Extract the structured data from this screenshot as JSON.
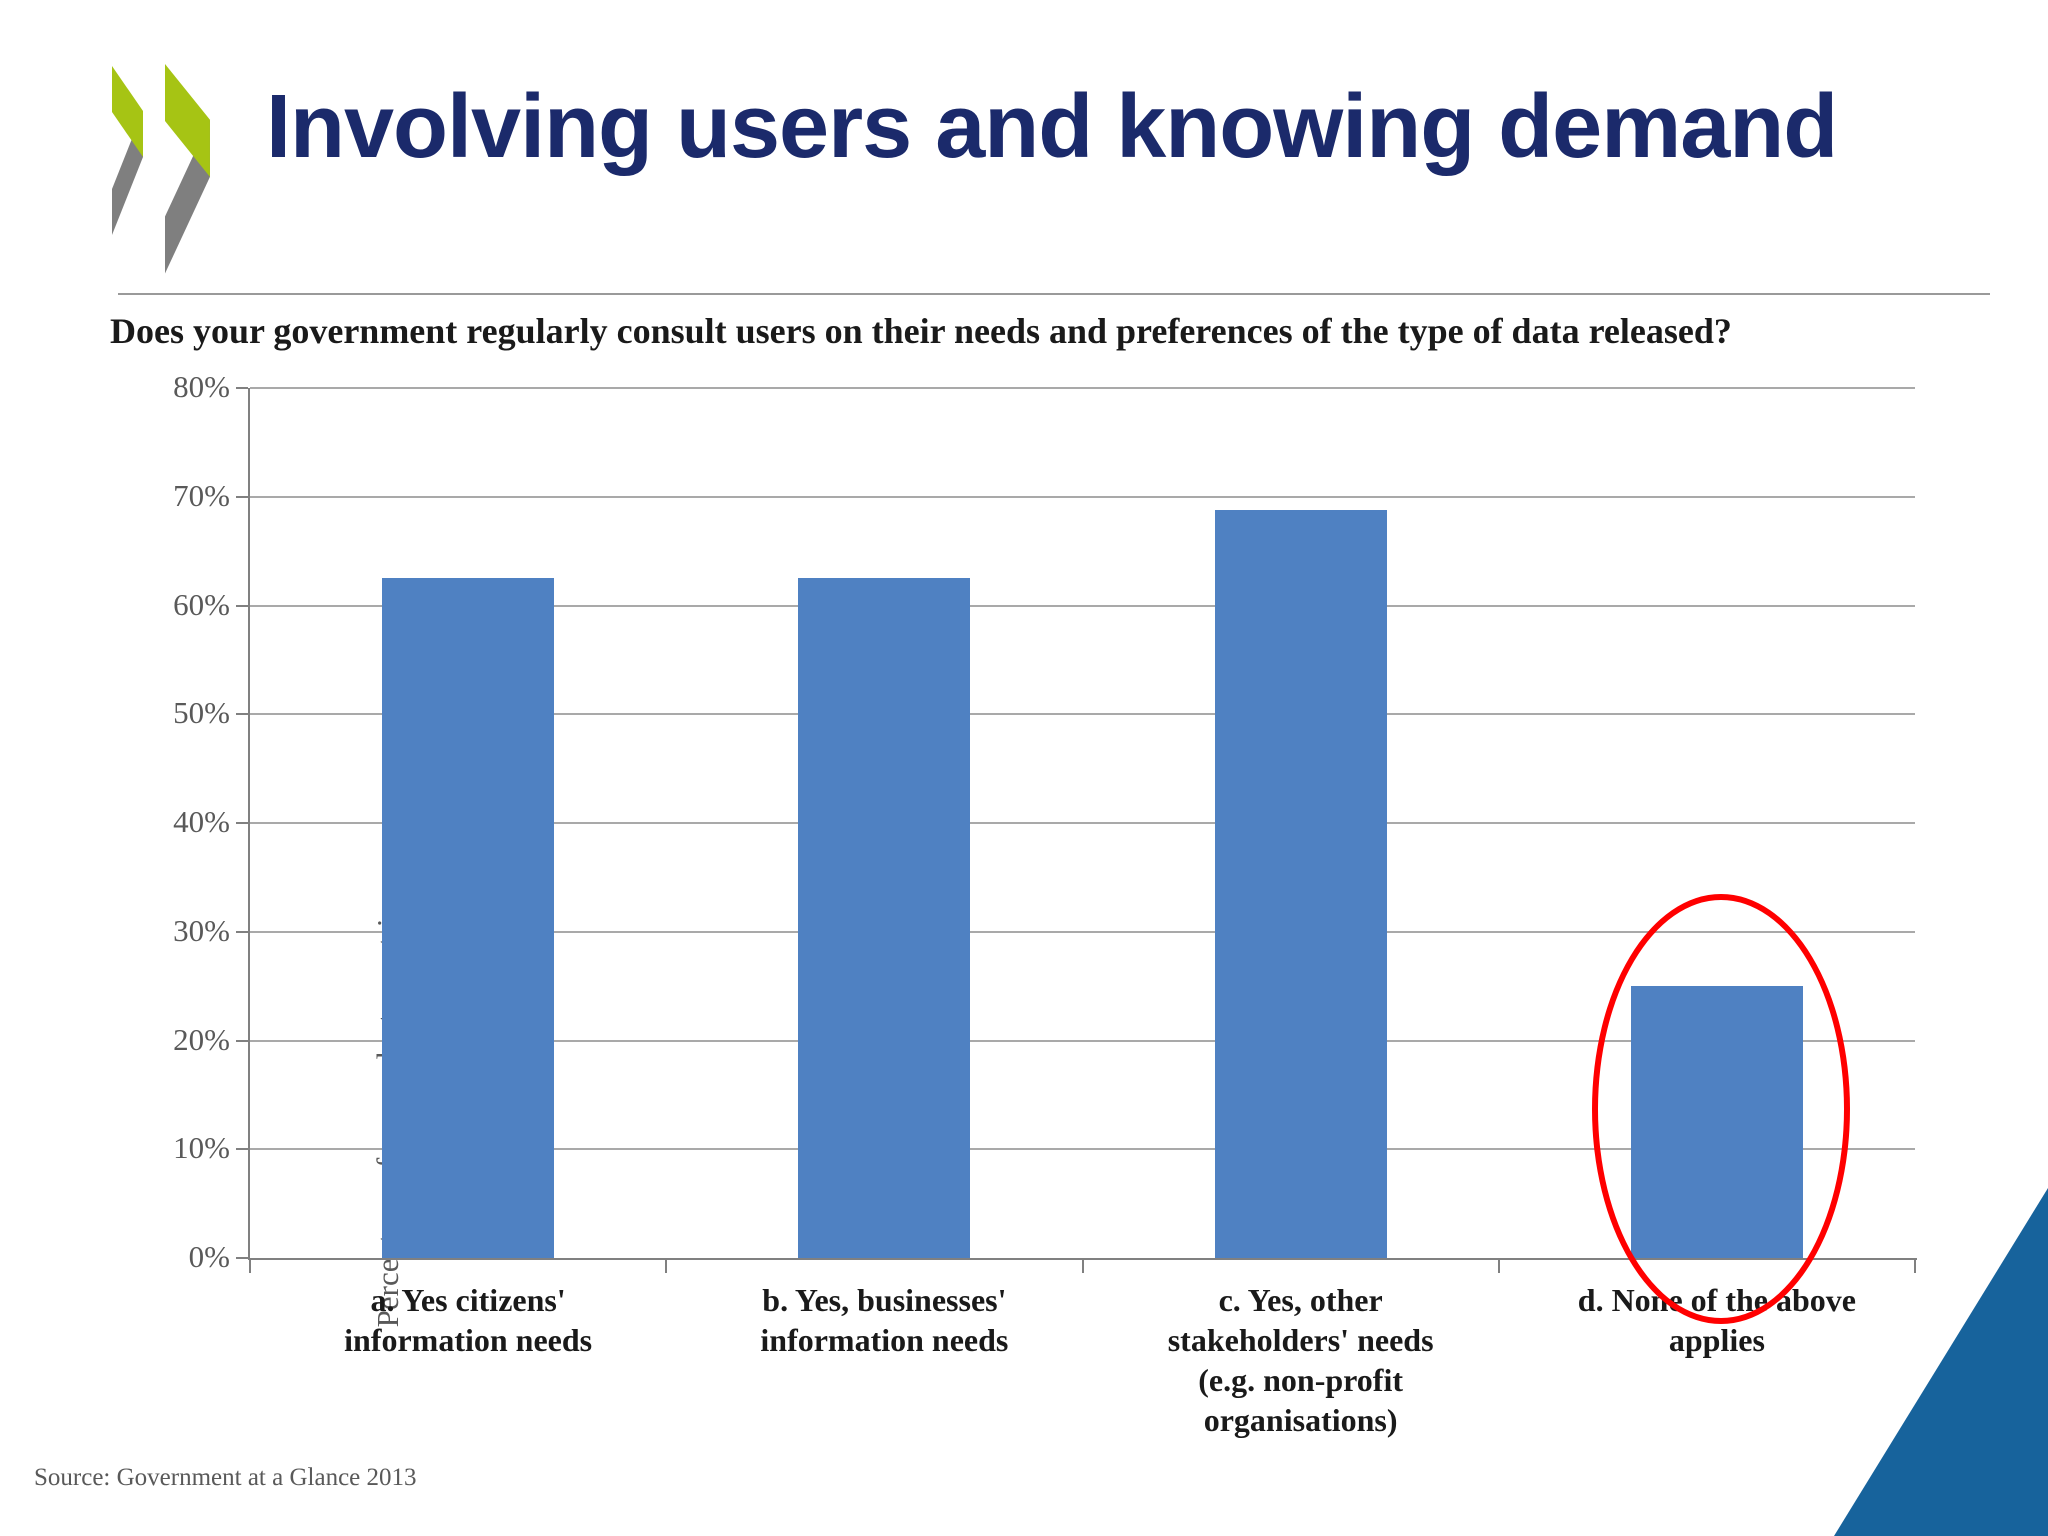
{
  "header": {
    "title": "Involving users and knowing demand",
    "logo": "oecd-chevrons-logo"
  },
  "question": "Does your government regularly consult users on their needs and preferences of the type of data released?",
  "footer": {
    "source": "Source: Government at a Glance 2013"
  },
  "colors": {
    "title_text": "#1b2a6b",
    "bar_fill": "#4f81c2",
    "axis_line": "#808080",
    "gridline": "#a9a9a9",
    "muted_text": "#595959",
    "label_text": "#1a1a1a",
    "highlight_ring": "#ff0000",
    "logo_green": "#a6c414",
    "logo_gray": "#7f7f7f",
    "corner_triangle": "#17639c"
  },
  "chart_data": {
    "type": "bar",
    "title": "Does your government regularly consult users on their needs and preferences of the type of data released?",
    "xlabel": "",
    "ylabel": "Percentage of respondent countries",
    "ylim": [
      0,
      80
    ],
    "ytick_step": 10,
    "ytick_labels": [
      "0%",
      "10%",
      "20%",
      "30%",
      "40%",
      "50%",
      "60%",
      "70%",
      "80%"
    ],
    "grid": true,
    "legend": false,
    "bar_color": "#4f81c2",
    "categories": [
      "a. Yes citizens'\ninformation needs",
      "b. Yes, businesses'\ninformation needs",
      "c. Yes, other\nstakeholders' needs\n(e.g. non-profit\norganisations)",
      "d. None of the above\napplies"
    ],
    "values": [
      62.5,
      62.5,
      68.8,
      25
    ],
    "unit": "%",
    "annotation": {
      "type": "red-ellipse-highlight",
      "target_category_index": 3,
      "target_category": "d. None of the above applies",
      "color": "#ff0000"
    }
  }
}
